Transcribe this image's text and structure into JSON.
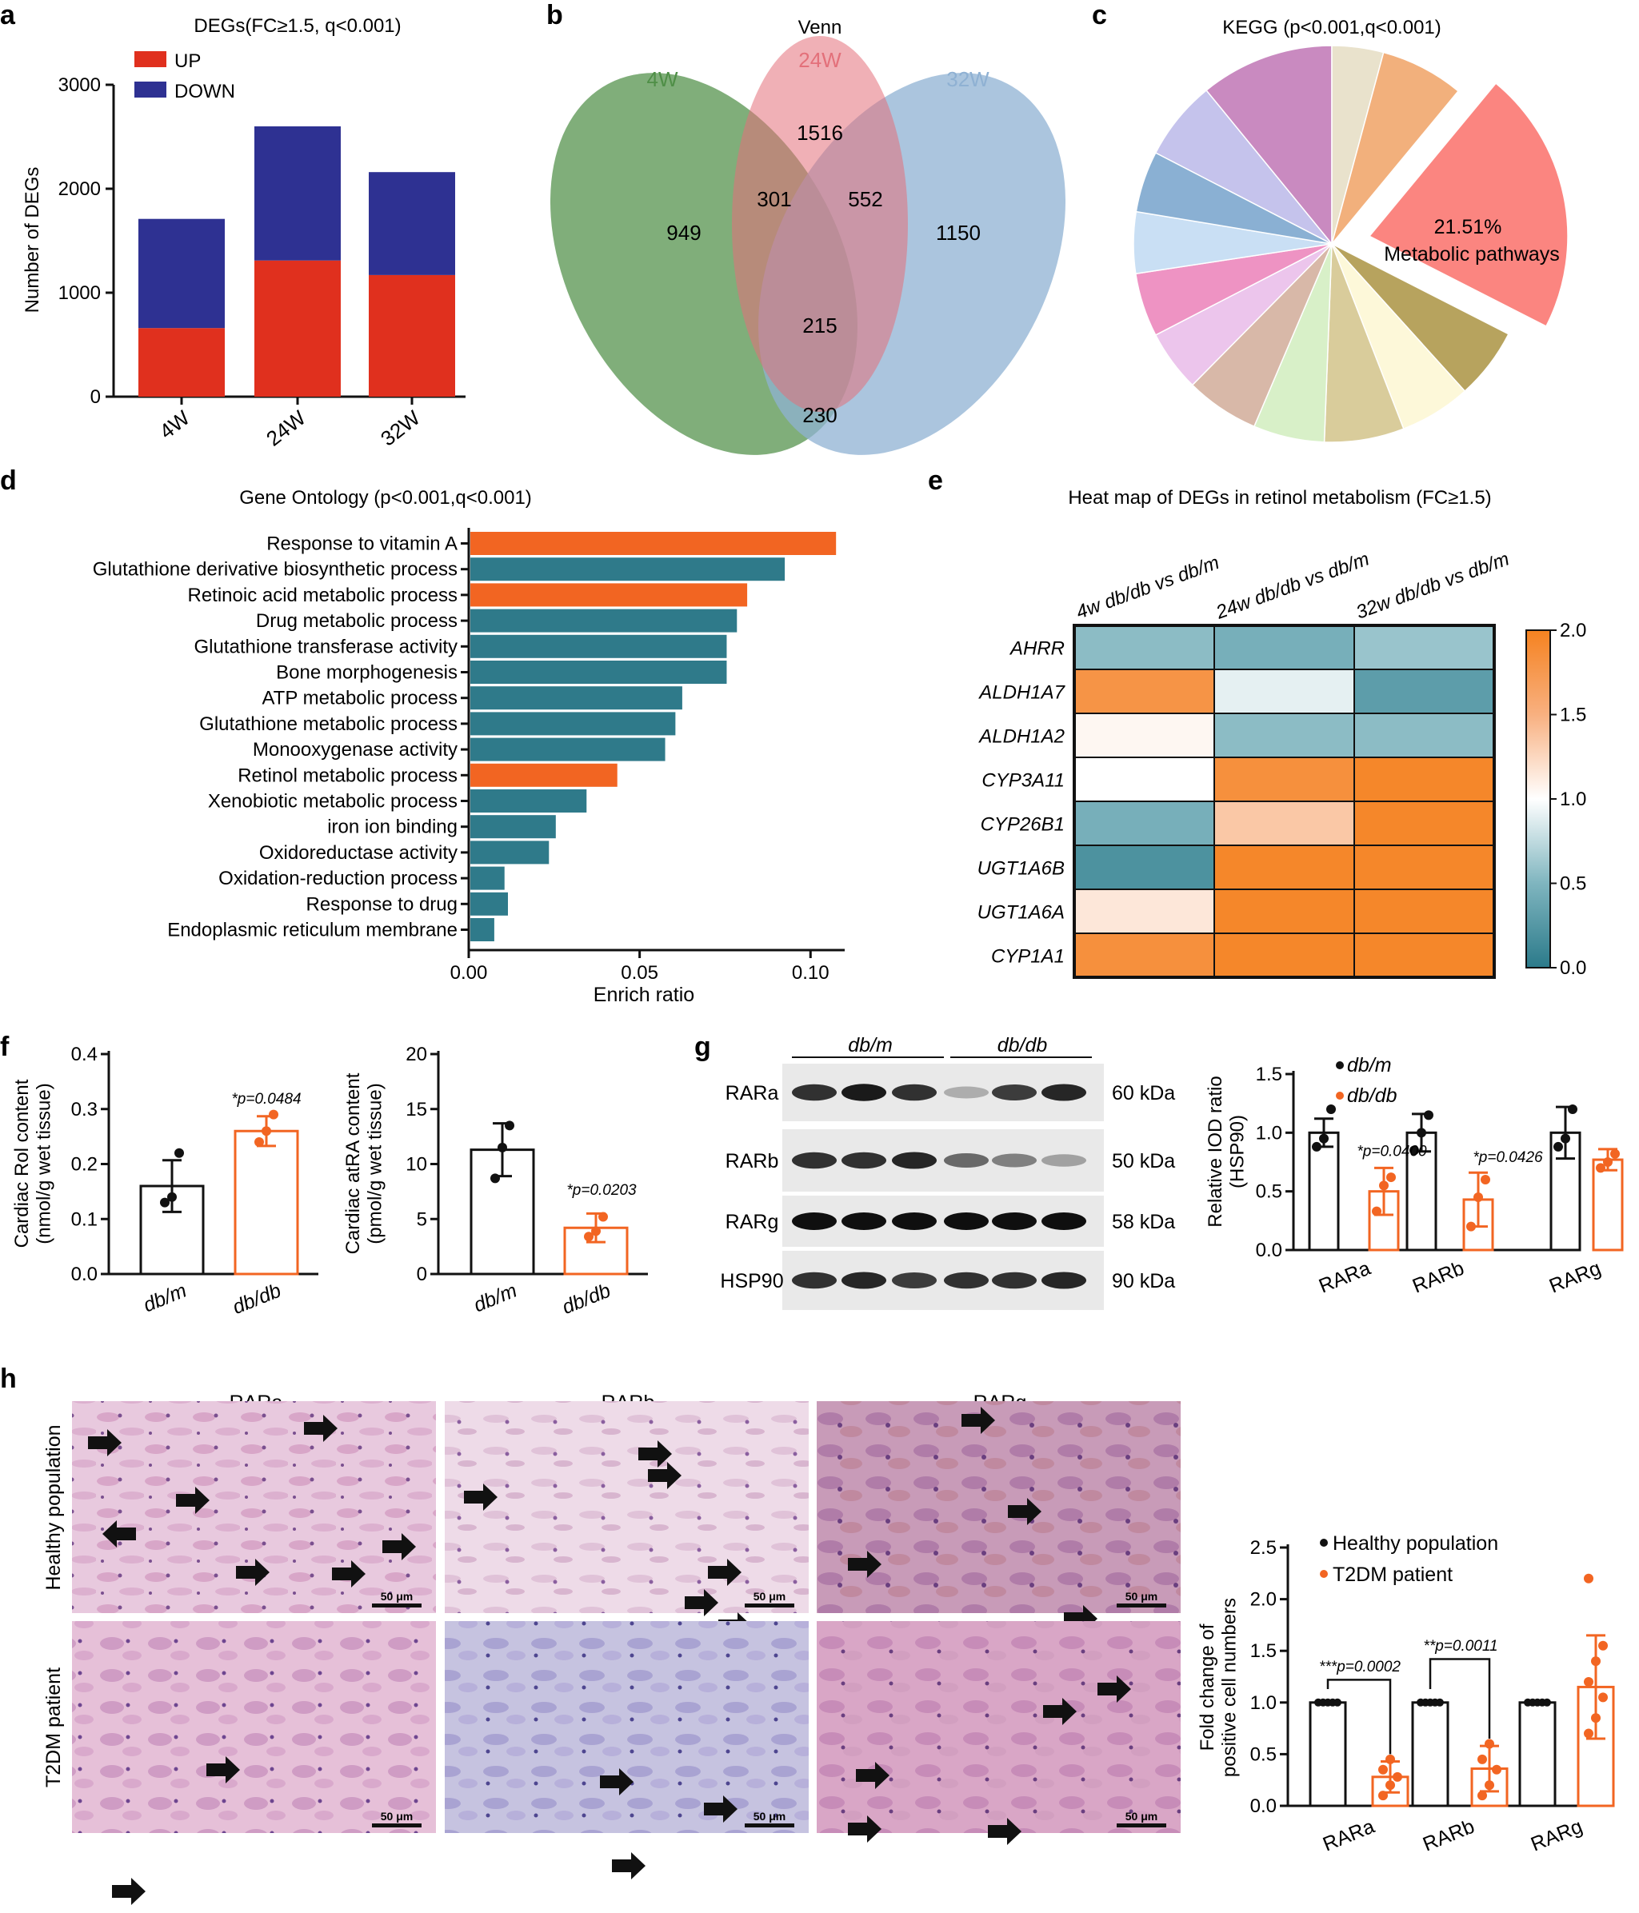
{
  "panel_letters": [
    "a",
    "b",
    "c",
    "d",
    "e",
    "f",
    "g",
    "h"
  ],
  "colors": {
    "up_red": "#e0301e",
    "down_blue": "#2e3192",
    "venn_4w": "#4f8f47",
    "venn_24w": "#e3707a",
    "venn_32w": "#8fb1d3",
    "go_orange": "#f26522",
    "go_teal": "#2f7a8a",
    "heat_low": "#2b7a8a",
    "heat_mid": "#ffffff",
    "heat_high": "#f58220",
    "dbdb_orange": "#f26522",
    "dbm_black": "#111111"
  },
  "chart_data": [
    {
      "panel": "a",
      "type": "bar",
      "stacked": true,
      "title": "DEGs(FC≥1.5, q<0.001)",
      "ylabel": "Number of DEGs",
      "categories": [
        "4W",
        "24W",
        "32W"
      ],
      "ylim": [
        0,
        3000
      ],
      "yticks": [
        "0",
        "1000",
        "2000",
        "3000"
      ],
      "series": [
        {
          "name": "UP",
          "values": [
            660,
            1310,
            1170
          ]
        },
        {
          "name": "DOWN",
          "values": [
            1050,
            1290,
            990
          ]
        }
      ]
    },
    {
      "panel": "b",
      "type": "venn",
      "title": "Venn",
      "sets": [
        "4W",
        "24W",
        "32W"
      ],
      "regions": {
        "only_4w": "949",
        "only_24w": "1516",
        "only_32w": "1150",
        "4w_24w": "301",
        "24w_32w": "552",
        "all": "215",
        "4w_32w": "230"
      }
    },
    {
      "panel": "c",
      "type": "pie",
      "title": "KEGG (p<0.001,q<0.001)",
      "highlight_label": "21.51%",
      "highlight_name": "Metabolic pathways",
      "slices": [
        {
          "value": 21.51,
          "color": "#fb8580"
        },
        {
          "value": 5.8,
          "color": "#b7a35e"
        },
        {
          "value": 5.8,
          "color": "#fdf8d9"
        },
        {
          "value": 6.5,
          "color": "#d9cc9b"
        },
        {
          "value": 5.8,
          "color": "#d8f0c8"
        },
        {
          "value": 6.0,
          "color": "#d8b8a8"
        },
        {
          "value": 5.0,
          "color": "#ecc5ec"
        },
        {
          "value": 5.2,
          "color": "#ee93c3"
        },
        {
          "value": 5.0,
          "color": "#c9dff4"
        },
        {
          "value": 5.0,
          "color": "#8ab0d3"
        },
        {
          "value": 6.5,
          "color": "#c5c3ec"
        },
        {
          "value": 10.9,
          "color": "#c98ac0"
        },
        {
          "value": 4.2,
          "color": "#e9e2cc"
        },
        {
          "value": 6.8,
          "color": "#f2b07c"
        }
      ]
    },
    {
      "panel": "d",
      "type": "bar",
      "orientation": "horizontal",
      "title": "Gene Ontology (p<0.001,q<0.001)",
      "xlabel": "Enrich ratio",
      "xlim": [
        0,
        0.11
      ],
      "xticks": [
        "0.00",
        "0.05",
        "0.10"
      ],
      "categories": [
        "Response to vitamin A",
        "Glutathione derivative biosynthetic process",
        "Retinoic acid metabolic process",
        "Drug metabolic process",
        "Glutathione transferase activity",
        "Bone morphogenesis",
        "ATP metabolic process",
        "Glutathione metabolic process",
        "Monooxygenase activity",
        "Retinol metabolic process",
        "Xenobiotic metabolic process",
        "iron ion binding",
        "Oxidoreductase activity",
        "Oxidation-reduction process",
        "Response to drug",
        "Endoplasmic reticulum membrane"
      ],
      "values": [
        0.107,
        0.092,
        0.081,
        0.078,
        0.075,
        0.075,
        0.062,
        0.06,
        0.057,
        0.043,
        0.034,
        0.025,
        0.023,
        0.01,
        0.011,
        0.007
      ],
      "highlight": [
        true,
        false,
        true,
        false,
        false,
        false,
        false,
        false,
        false,
        true,
        false,
        false,
        false,
        false,
        false,
        false
      ]
    },
    {
      "panel": "e",
      "type": "heatmap",
      "title": "Heat map of DEGs in retinol metabolism (FC≥1.5)",
      "columns": [
        "4w db/db vs db/m",
        "24w db/db vs db/m",
        "32w db/db vs db/m"
      ],
      "rows": [
        "AHRR",
        "ALDH1A7",
        "ALDH1A2",
        "CYP3A11",
        "CYP26B1",
        "UGT1A6B",
        "UGT1A6A",
        "CYP1A1"
      ],
      "values": [
        [
          0.55,
          0.45,
          0.6
        ],
        [
          1.8,
          0.9,
          0.3
        ],
        [
          1.05,
          0.55,
          0.55
        ],
        [
          1.0,
          1.85,
          1.95
        ],
        [
          0.45,
          1.35,
          1.95
        ],
        [
          0.2,
          1.95,
          1.95
        ],
        [
          1.15,
          1.95,
          1.95
        ],
        [
          1.85,
          1.95,
          1.95
        ]
      ],
      "colorbar_ticks": [
        "0.0",
        "0.5",
        "1.0",
        "1.5",
        "2.0"
      ],
      "vlim": [
        0,
        2
      ]
    },
    {
      "panel": "f1",
      "type": "bar",
      "ylabel": "Cardiac Rol content\n(nmol/g wet tissue)",
      "categories": [
        "db/m",
        "db/db"
      ],
      "values": [
        0.16,
        0.26
      ],
      "err": [
        0.047,
        0.027
      ],
      "points": [
        [
          0.13,
          0.14,
          0.22
        ],
        [
          0.24,
          0.26,
          0.29
        ]
      ],
      "ylim": [
        0,
        0.4
      ],
      "yticks": [
        "0.0",
        "0.1",
        "0.2",
        "0.3",
        "0.4"
      ],
      "annotation": "*p=0.0484"
    },
    {
      "panel": "f2",
      "type": "bar",
      "ylabel": "Cardiac atRA content\n(pmol/g wet tissue)",
      "categories": [
        "db/m",
        "db/db"
      ],
      "values": [
        11.3,
        4.2
      ],
      "err": [
        2.4,
        1.3
      ],
      "points": [
        [
          8.7,
          11.5,
          13.5
        ],
        [
          3.4,
          3.9,
          5.2
        ]
      ],
      "ylim": [
        0,
        20
      ],
      "yticks": [
        "0",
        "5",
        "10",
        "15",
        "20"
      ],
      "annotation": "*p=0.0203"
    },
    {
      "panel": "g",
      "type": "bar",
      "ylabel": "Relative IOD ratio\n(HSP90)",
      "categories": [
        "RARa",
        "RARb",
        "RARg"
      ],
      "series": [
        {
          "name": "db/m",
          "values": [
            1.0,
            1.0,
            1.0
          ],
          "err": [
            0.12,
            0.16,
            0.22
          ],
          "points": [
            [
              0.88,
              0.95,
              1.2
            ],
            [
              0.85,
              1.0,
              1.15
            ],
            [
              0.88,
              0.95,
              1.2
            ]
          ]
        },
        {
          "name": "db/db",
          "values": [
            0.5,
            0.43,
            0.77
          ],
          "err": [
            0.2,
            0.23,
            0.09
          ],
          "points": [
            [
              0.33,
              0.55,
              0.62
            ],
            [
              0.2,
              0.45,
              0.6
            ],
            [
              0.7,
              0.75,
              0.82
            ]
          ]
        }
      ],
      "ylim": [
        0,
        1.5
      ],
      "yticks": [
        "0.0",
        "0.5",
        "1.0",
        "1.5"
      ],
      "annotations": [
        "*p=0.0400",
        "*p=0.0426"
      ]
    },
    {
      "panel": "h",
      "type": "bar",
      "ylabel": "Fold change of\npositive cell numbers",
      "categories": [
        "RARa",
        "RARb",
        "RARg"
      ],
      "series": [
        {
          "name": "Healthy population",
          "values": [
            1.0,
            1.0,
            1.0
          ],
          "err": [
            0.01,
            0.01,
            0.01
          ]
        },
        {
          "name": "T2DM patient",
          "values": [
            0.28,
            0.36,
            1.15
          ],
          "err": [
            0.15,
            0.22,
            0.5
          ],
          "points": [
            [
              0.1,
              0.2,
              0.28,
              0.35,
              0.45
            ],
            [
              0.1,
              0.2,
              0.35,
              0.45,
              0.6
            ],
            [
              0.7,
              0.85,
              1.05,
              1.2,
              1.4,
              1.55,
              2.2
            ]
          ]
        }
      ],
      "ylim": [
        0,
        2.5
      ],
      "yticks": [
        "0.0",
        "0.5",
        "1.0",
        "1.5",
        "2.0",
        "2.5"
      ],
      "annotations": [
        "***p=0.0002",
        "**p=0.0011"
      ]
    }
  ],
  "blot": {
    "groups": [
      "db/m",
      "db/db"
    ],
    "rows": [
      {
        "label": "RARa",
        "kda": "60 kDa",
        "intensity": [
          0.85,
          0.95,
          0.85,
          0.3,
          0.8,
          0.9
        ]
      },
      {
        "label": "RARb",
        "kda": "50 kDa",
        "intensity": [
          0.85,
          0.85,
          0.9,
          0.6,
          0.5,
          0.35
        ]
      },
      {
        "label": "RARg",
        "kda": "58 kDa",
        "intensity": [
          1,
          1,
          1,
          1,
          1,
          1
        ]
      },
      {
        "label": "HSP90",
        "kda": "90 kDa",
        "intensity": [
          0.85,
          0.9,
          0.8,
          0.85,
          0.85,
          0.9
        ]
      }
    ]
  },
  "histology": {
    "columns": [
      "RARa",
      "RARb",
      "RARg"
    ],
    "rows": [
      "Healthy population",
      "T2DM patient"
    ],
    "scale_label": "50 μm"
  }
}
